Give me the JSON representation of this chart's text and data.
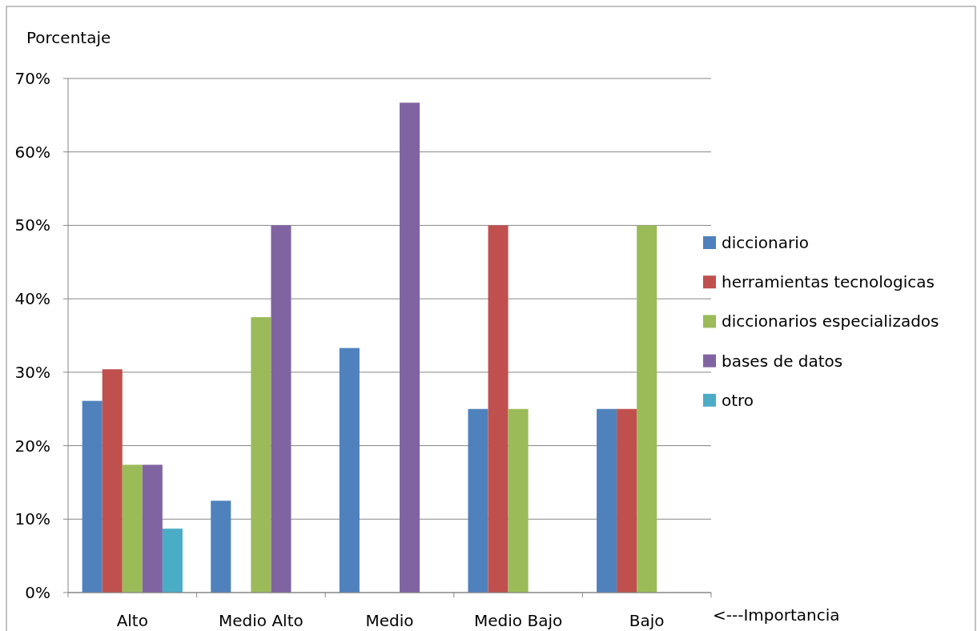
{
  "chart_data": {
    "type": "bar",
    "ylabel": "Porcentaje",
    "xlabel": "<---Importancia",
    "categories": [
      "Alto",
      "Medio Alto",
      "Medio",
      "Medio Bajo",
      "Bajo"
    ],
    "series": [
      {
        "name": "diccionario",
        "color": "#4f81bd",
        "values": [
          26.1,
          12.5,
          33.3,
          25,
          25
        ]
      },
      {
        "name": "herramientas tecnologicas",
        "color": "#c0504d",
        "values": [
          30.4,
          0,
          0,
          50,
          25
        ]
      },
      {
        "name": "diccionarios especializados",
        "color": "#9bbb59",
        "values": [
          17.4,
          37.5,
          0,
          25,
          50
        ]
      },
      {
        "name": "bases de datos",
        "color": "#8064a2",
        "values": [
          17.4,
          50,
          66.7,
          0,
          0
        ]
      },
      {
        "name": "otro",
        "color": "#4bacc6",
        "values": [
          8.7,
          0,
          0,
          0,
          0
        ]
      }
    ],
    "ylim": [
      0,
      70
    ],
    "yticks": [
      {
        "value": 0,
        "label": "0%"
      },
      {
        "value": 10,
        "label": "10%"
      },
      {
        "value": 20,
        "label": "20%"
      },
      {
        "value": 30,
        "label": "30%"
      },
      {
        "value": 40,
        "label": "40%"
      },
      {
        "value": 50,
        "label": "50%"
      },
      {
        "value": 60,
        "label": "60%"
      },
      {
        "value": 70,
        "label": "70%"
      }
    ],
    "grid": "y",
    "legend": "right"
  }
}
